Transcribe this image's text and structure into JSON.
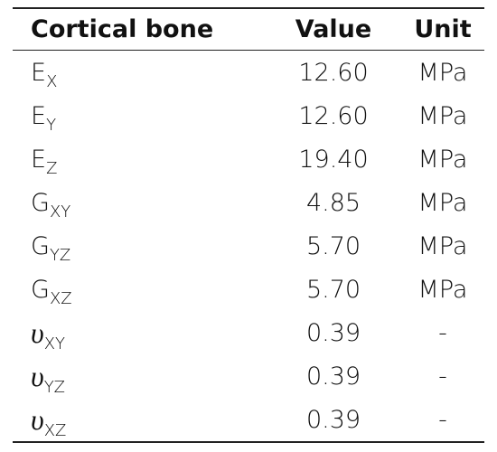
{
  "table": {
    "header": [
      "Cortical bone",
      "Value",
      "Unit"
    ],
    "rows": [
      [
        {
          "base": "E",
          "sub": "X"
        },
        "12.60",
        "MPa"
      ],
      [
        {
          "base": "E",
          "sub": "Y"
        },
        "12.60",
        "MPa"
      ],
      [
        {
          "base": "E",
          "sub": "Z"
        },
        "19.40",
        "MPa"
      ],
      [
        {
          "base": "G",
          "sub": "XY"
        },
        "4.85",
        "MPa"
      ],
      [
        {
          "base": "G",
          "sub": "YZ"
        },
        "5.70",
        "MPa"
      ],
      [
        {
          "base": "G",
          "sub": "XZ"
        },
        "5.70",
        "MPa"
      ],
      [
        {
          "base": "υ",
          "sub": "XY"
        },
        "0.39",
        "-"
      ],
      [
        {
          "base": "υ",
          "sub": "YZ"
        },
        "0.39",
        "-"
      ],
      [
        {
          "base": "υ",
          "sub": "XZ"
        },
        "0.39",
        "-"
      ]
    ]
  }
}
